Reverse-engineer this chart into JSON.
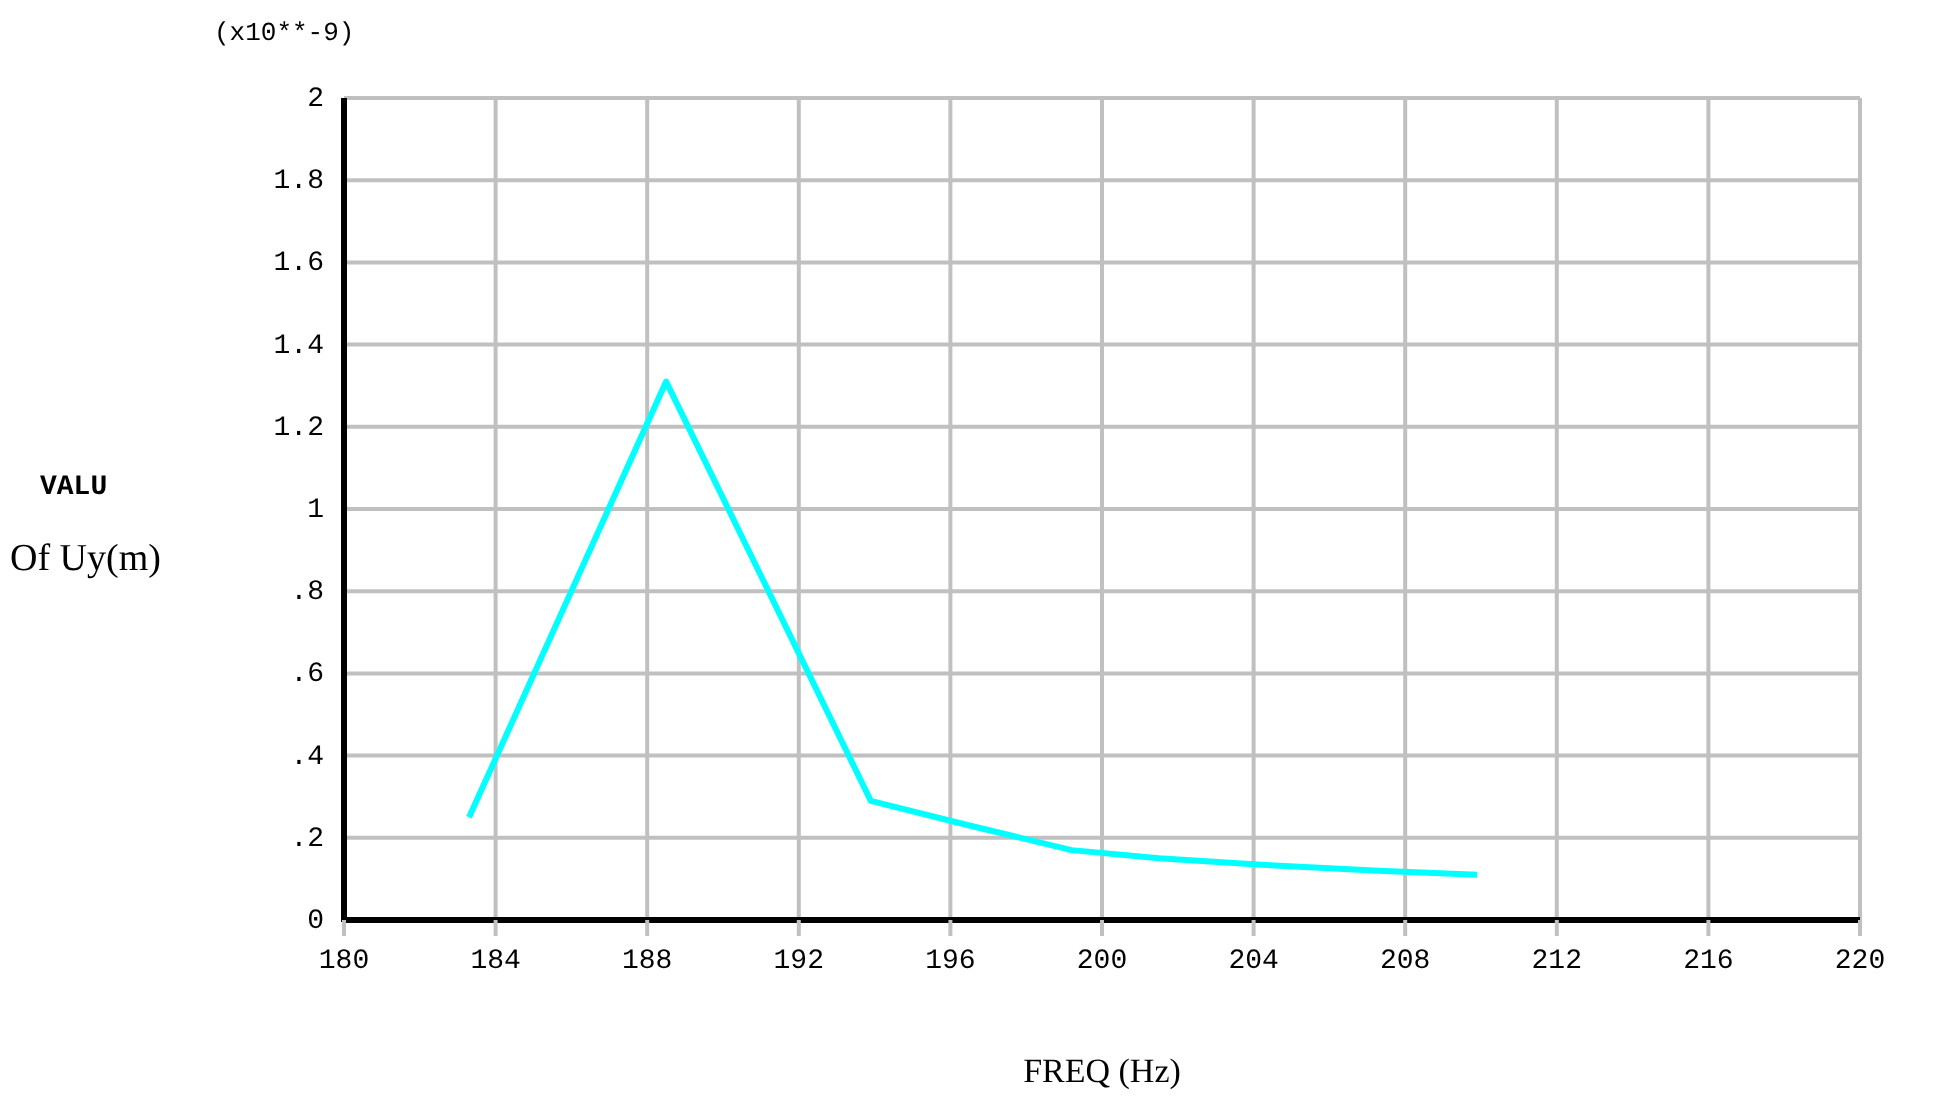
{
  "chart_data": {
    "type": "line",
    "xlabel": "FREQ  (Hz)",
    "ylabel": "VALU\nOf Uy(m)",
    "annotations": [
      "(x10**-9)"
    ],
    "x": [
      183.3,
      188.5,
      193.9,
      196.5,
      199.2,
      201.5,
      204.1,
      207.3,
      209.9
    ],
    "series": [
      {
        "color": "#00ffff",
        "values": [
          0.25,
          1.31,
          0.29,
          0.23,
          0.17,
          0.15,
          0.135,
          0.12,
          0.11
        ]
      }
    ],
    "xlim": [
      180,
      220
    ],
    "xticks": [
      180,
      184,
      188,
      192,
      196,
      200,
      204,
      208,
      212,
      216,
      220
    ],
    "ylim": [
      0,
      2
    ],
    "yticks": [
      0,
      {
        "value": 0.2,
        "label": ".2"
      },
      {
        "value": 0.4,
        "label": ".4"
      },
      {
        "value": 0.6,
        "label": ".6"
      },
      {
        "value": 0.8,
        "label": ".8"
      },
      1,
      1.2,
      1.4,
      1.6,
      1.8,
      2
    ],
    "grid": true,
    "marker": "none",
    "line_style": "solid"
  }
}
